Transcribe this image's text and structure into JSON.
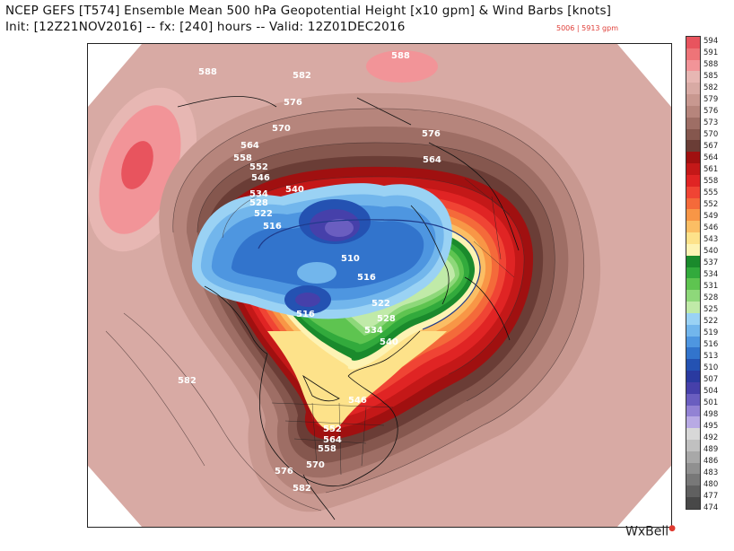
{
  "header": {
    "title": "NCEP GEFS [T574] Ensemble Mean 500 hPa Geopotential Height [x10 gpm] & Wind Barbs [knots]",
    "subtitle": "Init: [12Z21NOV2016] -- fx: [240] hours -- Valid: 12Z01DEC2016",
    "range": "5006 | 5913 gpm"
  },
  "colorbar": {
    "levels": [
      {
        "label": "594",
        "color": "#e8545e"
      },
      {
        "label": "591",
        "color": "#ee7478"
      },
      {
        "label": "588",
        "color": "#f29498"
      },
      {
        "label": "585",
        "color": "#e7b7b3"
      },
      {
        "label": "582",
        "color": "#d8aaa4"
      },
      {
        "label": "579",
        "color": "#c89890"
      },
      {
        "label": "576",
        "color": "#b6857c"
      },
      {
        "label": "573",
        "color": "#9e6e65"
      },
      {
        "label": "570",
        "color": "#85574e"
      },
      {
        "label": "567",
        "color": "#6a3d36"
      },
      {
        "label": "564",
        "color": "#a01010"
      },
      {
        "label": "561",
        "color": "#c41818"
      },
      {
        "label": "558",
        "color": "#e02424"
      },
      {
        "label": "555",
        "color": "#f04434"
      },
      {
        "label": "552",
        "color": "#f46a3a"
      },
      {
        "label": "549",
        "color": "#f89646"
      },
      {
        "label": "546",
        "color": "#fbbe64"
      },
      {
        "label": "543",
        "color": "#fde28a"
      },
      {
        "label": "540",
        "color": "#fdf3b4"
      },
      {
        "label": "537",
        "color": "#1a8a2c"
      },
      {
        "label": "534",
        "color": "#32aa3c"
      },
      {
        "label": "531",
        "color": "#5ec450"
      },
      {
        "label": "528",
        "color": "#8ed87a"
      },
      {
        "label": "525",
        "color": "#c0eaa8"
      },
      {
        "label": "522",
        "color": "#9ad2f4"
      },
      {
        "label": "519",
        "color": "#72b6ec"
      },
      {
        "label": "516",
        "color": "#4e96e0"
      },
      {
        "label": "513",
        "color": "#3274cc"
      },
      {
        "label": "510",
        "color": "#2452b2"
      },
      {
        "label": "507",
        "color": "#2a3aa0"
      },
      {
        "label": "504",
        "color": "#4640aa"
      },
      {
        "label": "501",
        "color": "#6a5ec0"
      },
      {
        "label": "498",
        "color": "#9282d4"
      },
      {
        "label": "495",
        "color": "#b8aae4"
      },
      {
        "label": "492",
        "color": "#d8d8d8"
      },
      {
        "label": "489",
        "color": "#c0c0c0"
      },
      {
        "label": "486",
        "color": "#a8a8a8"
      },
      {
        "label": "483",
        "color": "#909090"
      },
      {
        "label": "480",
        "color": "#787878"
      },
      {
        "label": "477",
        "color": "#606060"
      },
      {
        "label": "474",
        "color": "#484848"
      }
    ]
  },
  "map": {
    "contour_labels": [
      {
        "text": "588"
      },
      {
        "text": "588"
      },
      {
        "text": "582"
      },
      {
        "text": "576"
      },
      {
        "text": "570"
      },
      {
        "text": "576"
      },
      {
        "text": "564"
      },
      {
        "text": "564"
      },
      {
        "text": "558"
      },
      {
        "text": "552"
      },
      {
        "text": "546"
      },
      {
        "text": "540"
      },
      {
        "text": "534"
      },
      {
        "text": "528"
      },
      {
        "text": "522"
      },
      {
        "text": "516"
      },
      {
        "text": "510"
      },
      {
        "text": "516"
      },
      {
        "text": "516"
      },
      {
        "text": "522"
      },
      {
        "text": "528"
      },
      {
        "text": "534"
      },
      {
        "text": "540"
      },
      {
        "text": "582"
      },
      {
        "text": "546"
      },
      {
        "text": "552"
      },
      {
        "text": "558"
      },
      {
        "text": "564"
      },
      {
        "text": "570"
      },
      {
        "text": "576"
      },
      {
        "text": "582"
      }
    ]
  },
  "brand": {
    "text": "WxBell",
    "mark": "●"
  }
}
